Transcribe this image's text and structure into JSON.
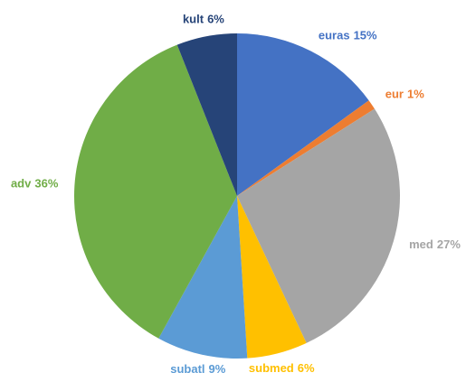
{
  "chart_data": {
    "type": "pie",
    "categories": [
      "euras",
      "eur",
      "med",
      "submed",
      "subatl",
      "adv",
      "kult"
    ],
    "values": [
      15,
      1,
      27,
      6,
      9,
      36,
      6
    ],
    "value_labels": [
      "15%",
      "1%",
      "27%",
      "6%",
      "9%",
      "36%",
      "6%"
    ],
    "colors": [
      "#4472c4",
      "#ed7d31",
      "#a5a5a5",
      "#ffc000",
      "#5b9bd5",
      "#70ad47",
      "#264478"
    ]
  }
}
